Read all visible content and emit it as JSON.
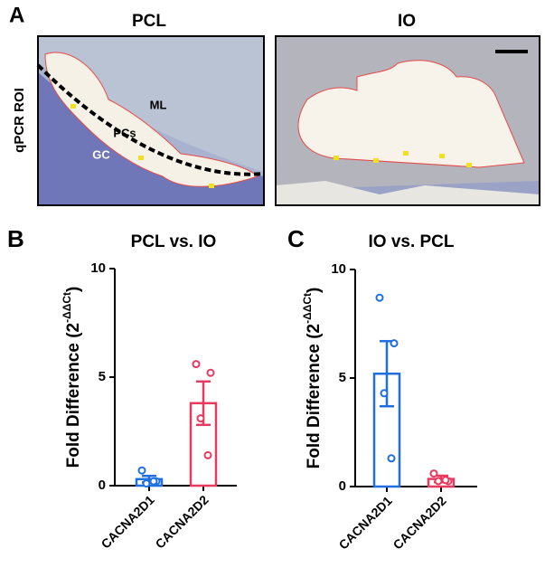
{
  "figure_a": {
    "panel": "A",
    "left_title": "PCL",
    "right_title": "IO",
    "row_label": "qPCR ROI",
    "labels": [
      "ML",
      "PCs",
      "GC"
    ]
  },
  "chart_data": [
    {
      "type": "bar",
      "panel": "B",
      "title": "PCL vs. IO",
      "ylabel": [
        "Fold Difference (2",
        "-ΔΔCt",
        ")"
      ],
      "categories": [
        "CACNA2D1",
        "CACNA2D2"
      ],
      "colors": [
        "#1f6fe0",
        "#e8395f"
      ],
      "values": [
        0.3,
        3.8
      ],
      "errors": [
        0.15,
        1.0
      ],
      "points": [
        [
          0.7,
          0.2,
          0.1,
          0.2
        ],
        [
          5.6,
          5.2,
          3.1,
          1.4
        ]
      ],
      "ylim": [
        0,
        10
      ],
      "yticks": [
        0,
        5,
        10
      ]
    },
    {
      "type": "bar",
      "panel": "C",
      "title": "IO vs. PCL",
      "ylabel": [
        "Fold Difference (2",
        "-ΔΔCt",
        ")"
      ],
      "categories": [
        "CACNA2D1",
        "CACNA2D2"
      ],
      "colors": [
        "#1f6fe0",
        "#e8395f"
      ],
      "values": [
        5.2,
        0.35
      ],
      "errors": [
        1.5,
        0.15
      ],
      "points": [
        [
          8.7,
          6.6,
          4.3,
          1.3
        ],
        [
          0.6,
          0.25,
          0.25,
          0.3
        ]
      ],
      "ylim": [
        0,
        10
      ],
      "yticks": [
        0,
        5,
        10
      ]
    }
  ]
}
